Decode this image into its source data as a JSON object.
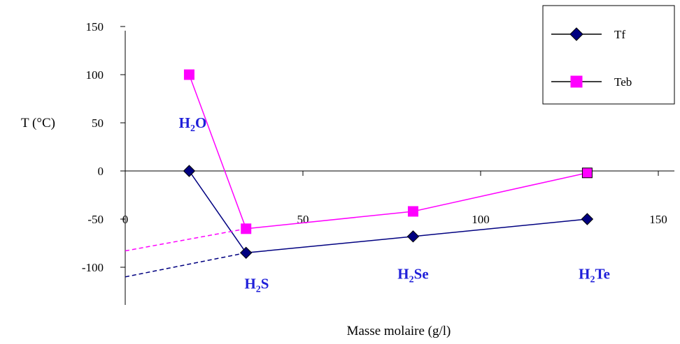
{
  "chart_data": {
    "type": "line",
    "xlabel": "Masse molaire (g/l)",
    "ylabel": "T (°C)",
    "xlim": [
      0,
      150
    ],
    "ylim": [
      -140,
      150
    ],
    "x_ticks": [
      0,
      50,
      100,
      150
    ],
    "y_ticks": [
      150,
      100,
      50,
      0,
      -50,
      -100
    ],
    "grid": false,
    "legend": {
      "placement": "top-right"
    },
    "series": [
      {
        "name": "Tf",
        "color": "#000080",
        "marker": "diamond",
        "x": [
          18,
          34,
          81,
          130
        ],
        "y": [
          0,
          -85,
          -68,
          -50
        ],
        "extrapolation": {
          "x": [
            0,
            34
          ],
          "y": [
            -110,
            -85
          ],
          "style": "dashed"
        }
      },
      {
        "name": "Teb",
        "color": "#ff00ff",
        "marker": "square",
        "x": [
          18,
          34,
          81,
          130
        ],
        "y": [
          100,
          -60,
          -42,
          -2
        ],
        "extrapolation": {
          "x": [
            0,
            34
          ],
          "y": [
            -83,
            -60
          ],
          "style": "dashed"
        }
      }
    ],
    "annotations": [
      {
        "main": "H",
        "sub": "2",
        "rest": "O",
        "x": 19,
        "y": 45
      },
      {
        "main": "H",
        "sub": "2",
        "rest": "S",
        "x": 37,
        "y": -122
      },
      {
        "main": "H",
        "sub": "2",
        "rest": "Se",
        "x": 81,
        "y": -112
      },
      {
        "main": "H",
        "sub": "2",
        "rest": "Te",
        "x": 132,
        "y": -112
      }
    ]
  }
}
